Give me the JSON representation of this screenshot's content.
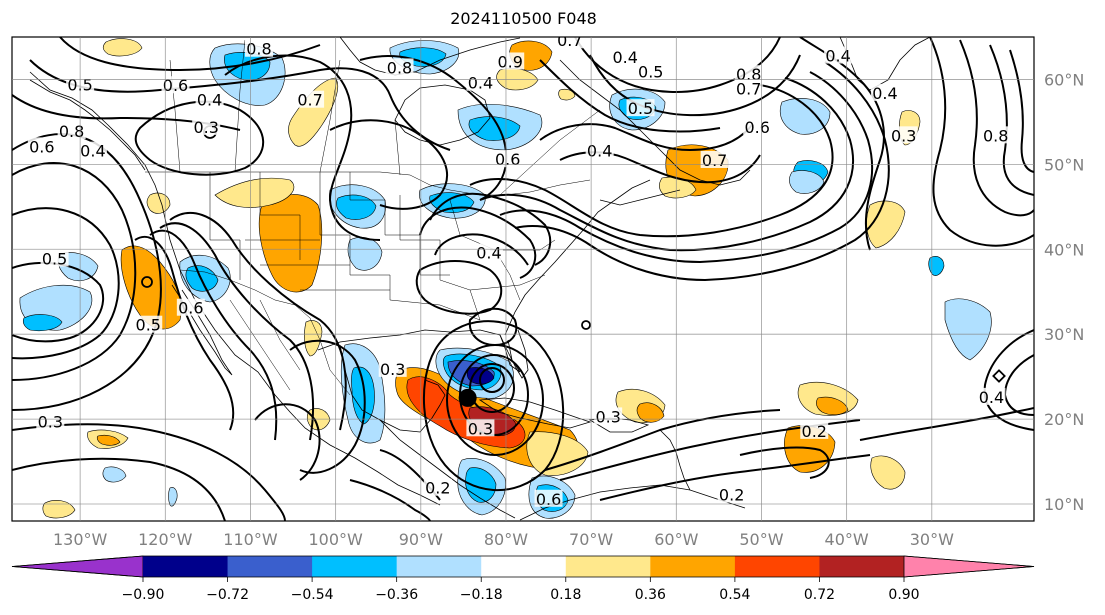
{
  "title": "2024110500 F048",
  "map": {
    "lon_range": [
      -138,
      -18
    ],
    "lat_range": [
      8,
      65
    ],
    "lat_labels": [
      "10°N",
      "20°N",
      "30°N",
      "40°N",
      "50°N",
      "60°N"
    ],
    "lat_values": [
      10,
      20,
      30,
      40,
      50,
      60
    ],
    "lon_labels": [
      "130°W",
      "120°W",
      "110°W",
      "100°W",
      "90°W",
      "80°W",
      "70°W",
      "60°W",
      "50°W",
      "40°W",
      "30°W"
    ],
    "lon_values": [
      -130,
      -120,
      -110,
      -100,
      -90,
      -80,
      -70,
      -60,
      -50,
      -40,
      -30
    ],
    "grid": true,
    "storm_center": {
      "lon": -84.5,
      "lat": 22.5
    },
    "contour_labels": [
      {
        "text": "0.5",
        "lon": -133,
        "lat": 38.8
      },
      {
        "text": "0.3",
        "lon": -133.5,
        "lat": 19.6
      },
      {
        "text": "0.6",
        "lon": -134.5,
        "lat": 52
      },
      {
        "text": "0.4",
        "lon": -128.5,
        "lat": 51.5
      },
      {
        "text": "0.8",
        "lon": -131,
        "lat": 53.8
      },
      {
        "text": "0.5",
        "lon": -130,
        "lat": 59.3
      },
      {
        "text": "0.6",
        "lon": -118.8,
        "lat": 59.2
      },
      {
        "text": "0.4",
        "lon": -114.8,
        "lat": 57.5
      },
      {
        "text": "0.3",
        "lon": -115.2,
        "lat": 54.3
      },
      {
        "text": "0.5",
        "lon": -122,
        "lat": 31
      },
      {
        "text": "0.6",
        "lon": -117,
        "lat": 33
      },
      {
        "text": "0.8",
        "lon": -109,
        "lat": 63.5
      },
      {
        "text": "0.7",
        "lon": -103,
        "lat": 57.5
      },
      {
        "text": "0.8",
        "lon": -92.5,
        "lat": 61.3
      },
      {
        "text": "0.4",
        "lon": -83,
        "lat": 59.5
      },
      {
        "text": "0.9",
        "lon": -79.5,
        "lat": 62
      },
      {
        "text": "0.6",
        "lon": -79.8,
        "lat": 50.5
      },
      {
        "text": "0.4",
        "lon": -82,
        "lat": 39.5
      },
      {
        "text": "0.7",
        "lon": -72.5,
        "lat": 64.5
      },
      {
        "text": "0.4",
        "lon": -66,
        "lat": 62.5
      },
      {
        "text": "0.5",
        "lon": -63,
        "lat": 60.8
      },
      {
        "text": "0.5",
        "lon": -64.2,
        "lat": 56.5
      },
      {
        "text": "0.4",
        "lon": -69,
        "lat": 51.5
      },
      {
        "text": "0.8",
        "lon": -51.5,
        "lat": 60.5
      },
      {
        "text": "0.7",
        "lon": -51.5,
        "lat": 58.8
      },
      {
        "text": "0.7",
        "lon": -55.5,
        "lat": 50.4
      },
      {
        "text": "0.6",
        "lon": -50.5,
        "lat": 54.3
      },
      {
        "text": "0.4",
        "lon": -41,
        "lat": 62.7
      },
      {
        "text": "0.4",
        "lon": -35.5,
        "lat": 58.3
      },
      {
        "text": "0.3",
        "lon": -33.3,
        "lat": 53.3
      },
      {
        "text": "0.8",
        "lon": -22.5,
        "lat": 53.3
      },
      {
        "text": "0.3",
        "lon": -93.3,
        "lat": 25.8
      },
      {
        "text": "0.3",
        "lon": -68,
        "lat": 20.2
      },
      {
        "text": "0.2",
        "lon": -88,
        "lat": 11.8
      },
      {
        "text": "0.2",
        "lon": -53.5,
        "lat": 11
      },
      {
        "text": "0.2",
        "lon": -43.8,
        "lat": 18.5
      },
      {
        "text": "0.4",
        "lon": -23,
        "lat": 22.5
      },
      {
        "text": "0.6",
        "lon": -75,
        "lat": 10.5
      },
      {
        "text": "0.3",
        "lon": -83,
        "lat": 18.8
      }
    ]
  },
  "colorbar": {
    "ticks": [
      "−0.90",
      "−0.72",
      "−0.54",
      "−0.36",
      "−0.18",
      "0.18",
      "0.36",
      "0.54",
      "0.72",
      "0.90"
    ],
    "colors": [
      "#9932cc",
      "#00008b",
      "#3a5fcd",
      "#00bfff",
      "#b0e0ff",
      "#ffffff",
      "#ffe88c",
      "#ffa500",
      "#ff4500",
      "#b22222",
      "#ff82ab"
    ]
  }
}
